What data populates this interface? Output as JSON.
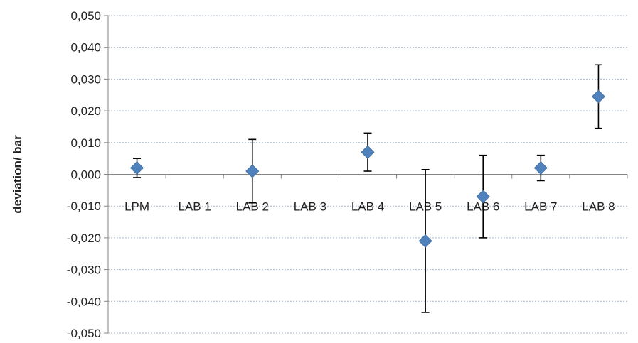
{
  "chart_data": {
    "type": "scatter",
    "xlabel": "",
    "ylabel": "deviation/ bar",
    "ylim": [
      -0.05,
      0.05
    ],
    "yticks": [
      0.05,
      0.04,
      0.03,
      0.02,
      0.01,
      0.0,
      -0.01,
      -0.02,
      -0.03,
      -0.04,
      -0.05
    ],
    "ytick_labels": [
      "0,050",
      "0,040",
      "0,030",
      "0,020",
      "0,010",
      "0,000",
      "-0,010",
      "-0,020",
      "-0,030",
      "-0,040",
      "-0,050"
    ],
    "categories": [
      "LPM",
      "LAB 1",
      "LAB 2",
      "LAB 3",
      "LAB 4",
      "LAB 5",
      "LAB 6",
      "LAB 7",
      "LAB 8"
    ],
    "grid": true,
    "marker_color": "#4f81bd",
    "points": [
      {
        "category": "LPM",
        "y": 0.002,
        "err_low": -0.001,
        "err_high": 0.005
      },
      {
        "category": "LAB 2",
        "y": 0.001,
        "err_low": -0.009,
        "err_high": 0.011
      },
      {
        "category": "LAB 4",
        "y": 0.007,
        "err_low": 0.001,
        "err_high": 0.013
      },
      {
        "category": "LAB 5",
        "y": -0.021,
        "err_low": -0.0435,
        "err_high": 0.0015
      },
      {
        "category": "LAB 6",
        "y": -0.007,
        "err_low": -0.02,
        "err_high": 0.006
      },
      {
        "category": "LAB 7",
        "y": 0.002,
        "err_low": -0.002,
        "err_high": 0.006
      },
      {
        "category": "LAB 8",
        "y": 0.0245,
        "err_low": 0.0145,
        "err_high": 0.0345
      }
    ]
  }
}
